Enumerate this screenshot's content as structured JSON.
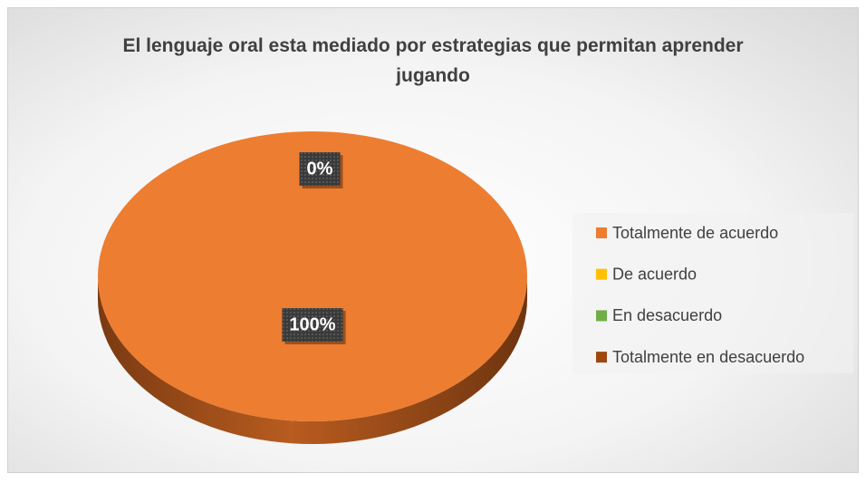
{
  "chart_data": {
    "type": "pie",
    "title": "El lenguaje oral esta mediado por estrategias que permitan aprender jugando",
    "categories": [
      "Totalmente de acuerdo",
      "De acuerdo",
      "En desacuerdo",
      "Totalmente en desacuerdo"
    ],
    "values": [
      100,
      0,
      0,
      0
    ],
    "value_labels": [
      "100%",
      "0%",
      null,
      null
    ],
    "colors": [
      "#ED7D31",
      "#FFC000",
      "#70AD47",
      "#9E480E"
    ],
    "legend": "right"
  }
}
